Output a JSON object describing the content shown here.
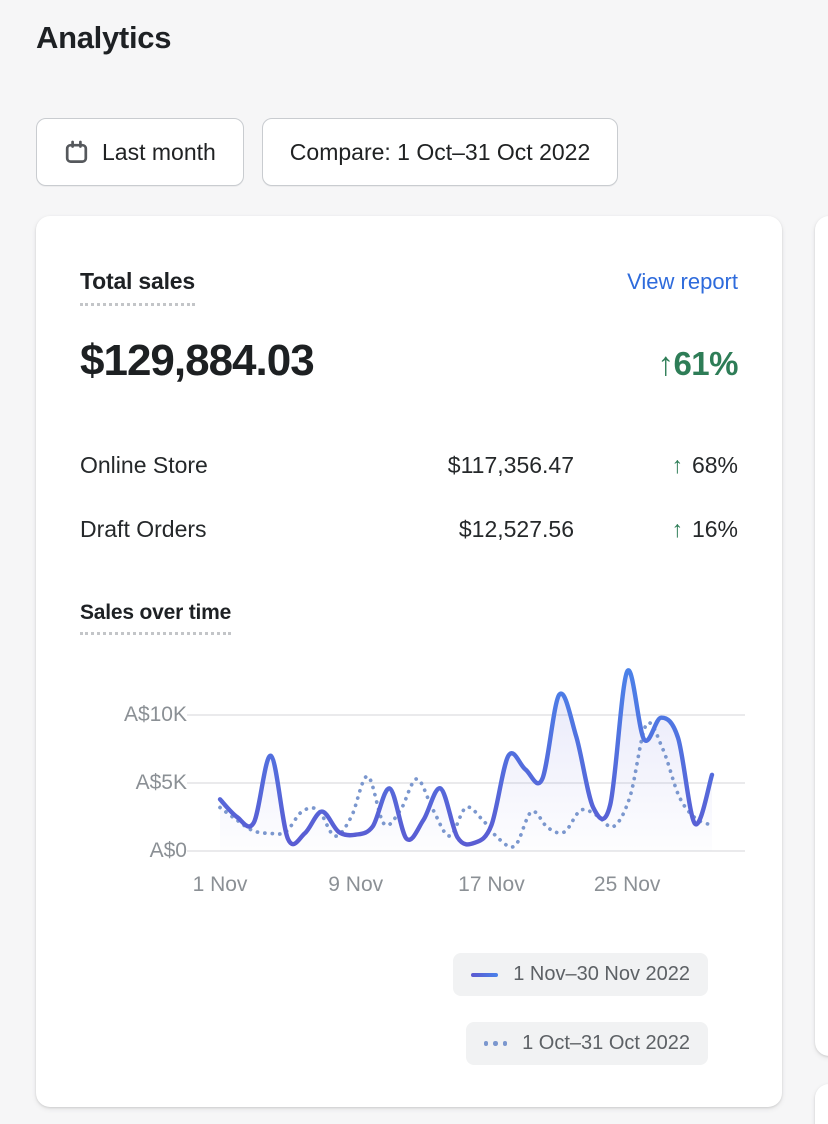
{
  "page": {
    "title": "Analytics"
  },
  "toolbar": {
    "date_range_label": "Last month",
    "compare_label": "Compare: 1 Oct–31 Oct 2022"
  },
  "card": {
    "title": "Total sales",
    "view_report_label": "View report",
    "total_value": "$129,884.03",
    "total_change_arrow": "↑",
    "total_change": "61%",
    "breakdown": [
      {
        "label": "Online Store",
        "value": "$117,356.47",
        "arrow": "↑",
        "change": "68%"
      },
      {
        "label": "Draft Orders",
        "value": "$12,527.56",
        "arrow": "↑",
        "change": "16%"
      }
    ],
    "chart_title": "Sales over time"
  },
  "chart_data": {
    "type": "line",
    "title": "Sales over time",
    "currency": "AUD",
    "grid": "horizontal",
    "legend_position": "bottom-right",
    "ylim": [
      0,
      13500
    ],
    "y_ticks": [
      {
        "label": "A$10K",
        "value": 10000
      },
      {
        "label": "A$5K",
        "value": 5000
      },
      {
        "label": "A$0",
        "value": 0
      }
    ],
    "x_ticks": [
      {
        "label": "1 Nov",
        "day": 1
      },
      {
        "label": "9 Nov",
        "day": 9
      },
      {
        "label": "17 Nov",
        "day": 17
      },
      {
        "label": "25 Nov",
        "day": 25
      }
    ],
    "series": [
      {
        "name": "1 Nov–30 Nov 2022",
        "style": "solid",
        "colors": [
          "#5c58d0",
          "#4a83ea"
        ],
        "values": [
          3800,
          2500,
          2100,
          7000,
          900,
          1300,
          2900,
          1400,
          1200,
          1800,
          4600,
          900,
          2300,
          4600,
          1000,
          600,
          1900,
          7000,
          6000,
          5300,
          11500,
          8400,
          3200,
          3400,
          13200,
          8200,
          9800,
          8300,
          2000,
          5600
        ]
      },
      {
        "name": "1 Oct–31 Oct 2022",
        "style": "dotted",
        "colors": [
          "#7b97ce"
        ],
        "values": [
          3200,
          2300,
          1500,
          1300,
          1400,
          2900,
          3000,
          1100,
          2500,
          5500,
          2000,
          3000,
          5300,
          3000,
          1100,
          3200,
          2300,
          900,
          400,
          2900,
          1700,
          1400,
          3000,
          2600,
          1800,
          4000,
          9300,
          7500,
          4000,
          2400,
          1900
        ]
      }
    ]
  },
  "colors": {
    "page_bg": "#f6f6f7",
    "card_bg": "#ffffff",
    "positive_green": "#2e7d57",
    "link_blue": "#2e6bdc",
    "grid_line": "#e3e4e6",
    "axis_text": "#8b9095"
  }
}
